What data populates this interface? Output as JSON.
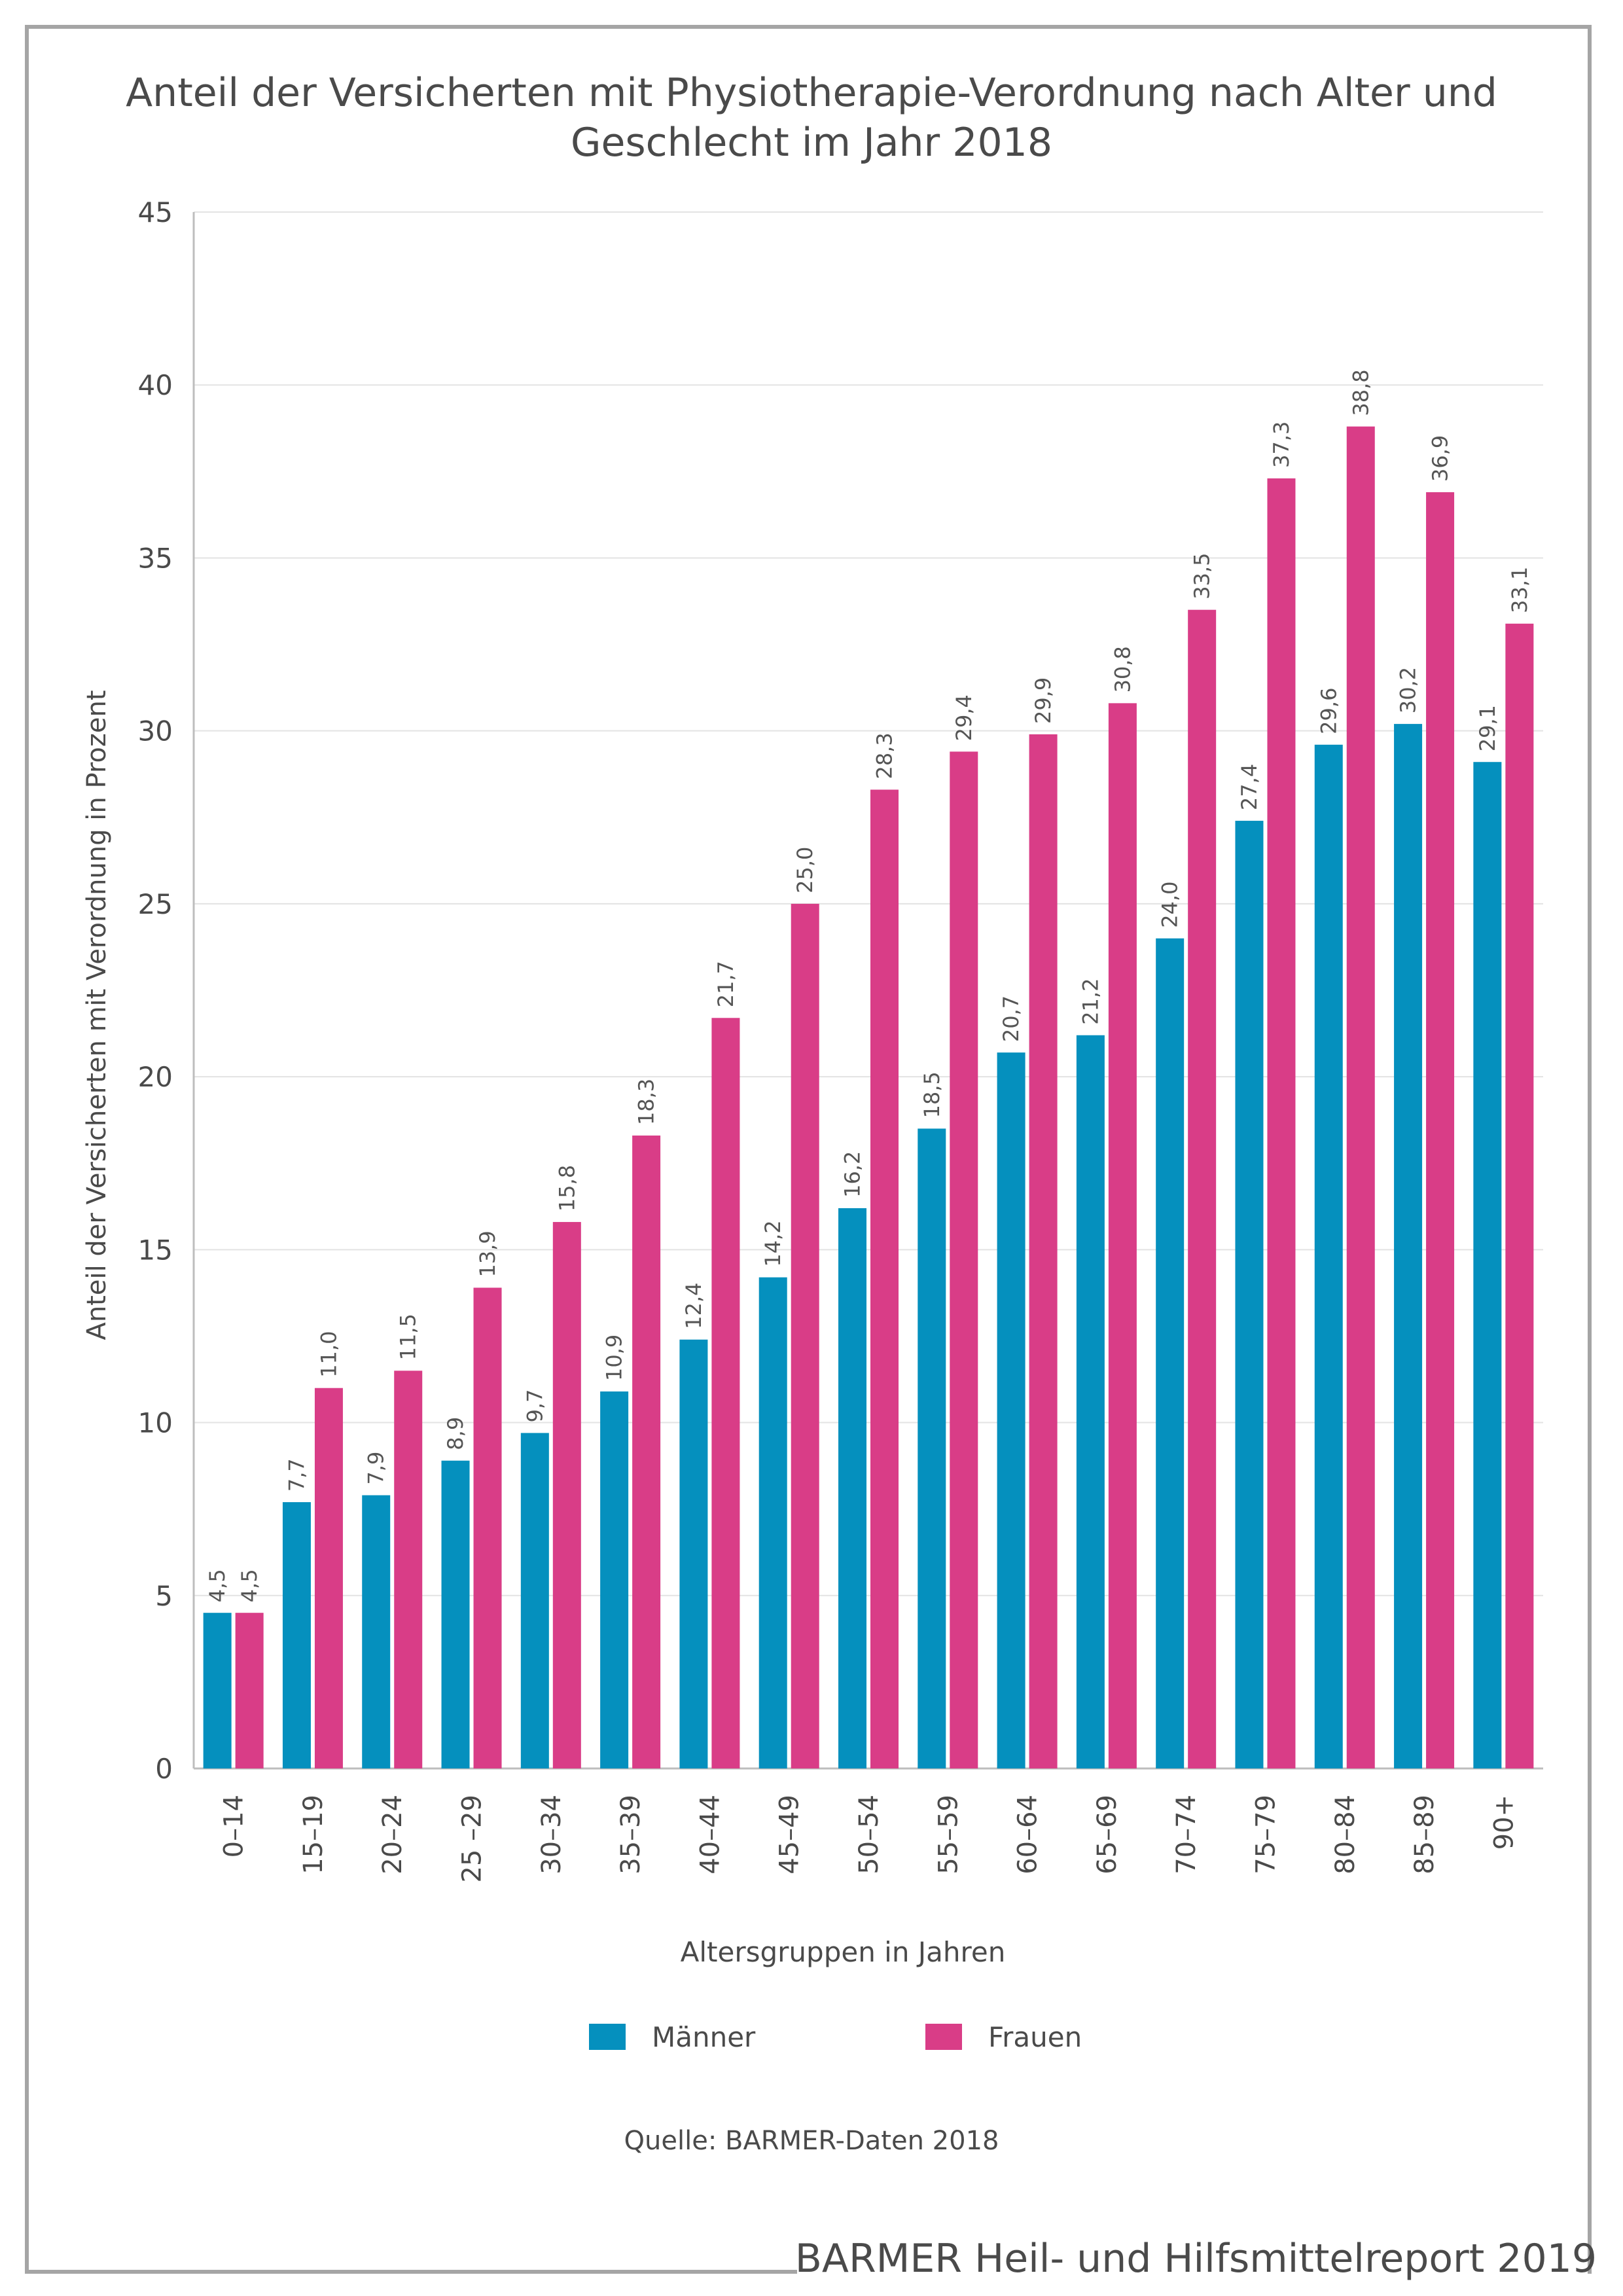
{
  "title_line1": "Anteil der Versicherten mit Physiotherapie-Verordnung nach Alter und",
  "title_line2": "Geschlecht im Jahr 2018",
  "source": "Quelle: BARMER-Daten 2018",
  "footer": "BARMER Heil- und Hilfsmittelreport 2019",
  "colors": {
    "maenner": "#0590be",
    "frauen": "#d93d87",
    "grid": "#e3e3e3",
    "axis": "#bdbdbd"
  },
  "chart_data": {
    "type": "bar",
    "title": "Anteil der Versicherten mit Physiotherapie-Verordnung nach Alter und Geschlecht im Jahr 2018",
    "xlabel": "Altersgruppen in Jahren",
    "ylabel": "Anteil der Versicherten mit Verordnung in Prozent",
    "ylim": [
      0,
      45
    ],
    "yticks": [
      "0",
      "5",
      "10",
      "15",
      "20",
      "25",
      "30",
      "35",
      "40",
      "45"
    ],
    "grid": true,
    "legend_position": "bottom",
    "categories": [
      "0–14",
      "15–19",
      "20–24",
      "25 –29",
      "30–34",
      "35–39",
      "40–44",
      "45–49",
      "50–54",
      "55–59",
      "60–64",
      "65–69",
      "70–74",
      "75–79",
      "80–84",
      "85–89",
      "90+"
    ],
    "series": [
      {
        "name": "Männer",
        "values": [
          4.5,
          7.7,
          7.9,
          8.9,
          9.7,
          10.9,
          12.4,
          14.2,
          16.2,
          18.5,
          20.7,
          21.2,
          24.0,
          27.4,
          29.6,
          30.2,
          29.1
        ],
        "labels": [
          "4,5",
          "7,7",
          "7,9",
          "8,9",
          "9,7",
          "10,9",
          "12,4",
          "14,2",
          "16,2",
          "18,5",
          "20,7",
          "21,2",
          "24,0",
          "27,4",
          "29,6",
          "30,2",
          "29,1"
        ]
      },
      {
        "name": "Frauen",
        "values": [
          4.5,
          11.0,
          11.5,
          13.9,
          15.8,
          18.3,
          21.7,
          25.0,
          28.3,
          29.4,
          29.9,
          30.8,
          33.5,
          37.3,
          38.8,
          36.9,
          33.1
        ],
        "labels": [
          "4,5",
          "11,0",
          "11,5",
          "13,9",
          "15,8",
          "18,3",
          "21,7",
          "25,0",
          "28,3",
          "29,4",
          "29,9",
          "30,8",
          "33,5",
          "37,3",
          "38,8",
          "36,9",
          "33,1"
        ]
      }
    ]
  }
}
